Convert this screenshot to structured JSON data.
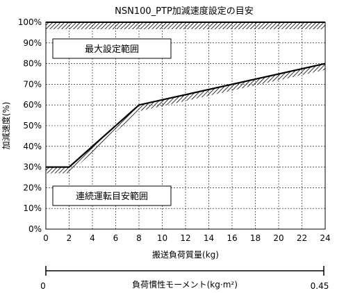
{
  "chart_data": {
    "type": "line",
    "title": "NSN100_PTP加減速度設定の目安",
    "xlabel": "搬送負荷質量(kg)",
    "ylabel": "加減速度(%)",
    "x_ticks": [
      "0",
      "2",
      "4",
      "6",
      "8",
      "10",
      "12",
      "14",
      "16",
      "18",
      "20",
      "22",
      "24"
    ],
    "y_ticks": [
      "0%",
      "10%",
      "20%",
      "30%",
      "40%",
      "50%",
      "60%",
      "70%",
      "80%",
      "90%",
      "100%"
    ],
    "xlim": [
      0,
      24
    ],
    "ylim": [
      0,
      100
    ],
    "grid": "dashed",
    "series": [
      {
        "x": [
          0,
          2,
          8,
          24
        ],
        "y": [
          30,
          30,
          60,
          80
        ]
      }
    ],
    "limit_line": {
      "y": 100
    },
    "regions": {
      "max": "最大設定範囲",
      "continuous": "連続運転目安範囲"
    },
    "secondary_axis": {
      "label": "負荷慣性モーメント(kg·m²)",
      "min_label": "0",
      "max_label": "0.45"
    }
  },
  "colors": {
    "line": "#000000",
    "grid": "#000000",
    "hatch": "#000000"
  }
}
